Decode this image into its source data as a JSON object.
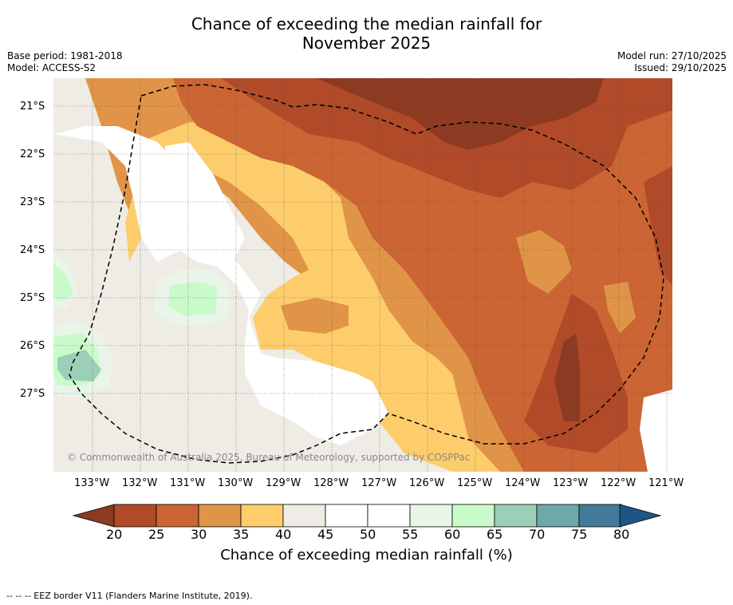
{
  "title": {
    "line1": "Chance of exceeding the median rainfall for",
    "line2": "November 2025"
  },
  "meta": {
    "base_period": "Base period: 1981-2018",
    "model": "Model: ACCESS-S2",
    "model_run": "Model run: 27/10/2025",
    "issued": "Issued: 29/10/2025"
  },
  "axes": {
    "lat_labels": [
      "21°S",
      "22°S",
      "23°S",
      "24°S",
      "25°S",
      "26°S",
      "27°S"
    ],
    "lon_labels": [
      "133°W",
      "132°W",
      "131°W",
      "130°W",
      "129°W",
      "128°W",
      "127°W",
      "126°W",
      "125°W",
      "124°W",
      "123°W",
      "122°W",
      "121°W"
    ]
  },
  "copyright": "© Commonwealth of Australia 2025, Bureau of Meteorology, supported by COSPPac",
  "colorbar": {
    "ticks": [
      "20",
      "25",
      "30",
      "35",
      "40",
      "45",
      "50",
      "55",
      "60",
      "65",
      "70",
      "75",
      "80"
    ],
    "label": "Chance of exceeding median rainfall (%)",
    "colors": {
      "under": "#8c3a22",
      "c20": "#b04a29",
      "c25": "#cb6533",
      "c30": "#e09447",
      "c35": "#fdcd6c",
      "c40": "#efebe5",
      "c45": "#ffffff",
      "c50": "#ffffff",
      "c55": "#e9f5e8",
      "c60": "#c8fbc9",
      "c65": "#9ccfb8",
      "c70": "#6fa8a8",
      "c75": "#447a9a",
      "over": "#1f5586"
    }
  },
  "footnote": "--  --  -- EEZ border V11 (Flanders Marine Institute, 2019)."
}
